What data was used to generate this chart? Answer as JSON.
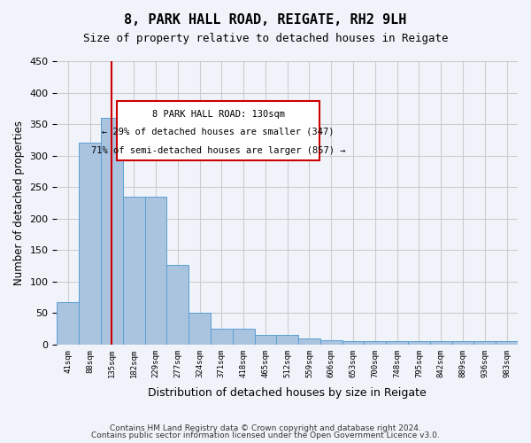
{
  "title1": "8, PARK HALL ROAD, REIGATE, RH2 9LH",
  "title2": "Size of property relative to detached houses in Reigate",
  "xlabel": "Distribution of detached houses by size in Reigate",
  "ylabel": "Number of detached properties",
  "footer1": "Contains HM Land Registry data © Crown copyright and database right 2024.",
  "footer2": "Contains public sector information licensed under the Open Government Licence v3.0.",
  "annotation_line1": "8 PARK HALL ROAD: 130sqm",
  "annotation_line2": "← 29% of detached houses are smaller (347)",
  "annotation_line3": "71% of semi-detached houses are larger (857) →",
  "bar_values": [
    67,
    320,
    360,
    235,
    235,
    127,
    50,
    25,
    25,
    15,
    15,
    10,
    7,
    5,
    5,
    5,
    5,
    5,
    5,
    5,
    5
  ],
  "bin_labels": [
    "41sqm",
    "88sqm",
    "135sqm",
    "182sqm",
    "229sqm",
    "277sqm",
    "324sqm",
    "371sqm",
    "418sqm",
    "465sqm",
    "512sqm",
    "559sqm",
    "606sqm",
    "653sqm",
    "700sqm",
    "748sqm",
    "795sqm",
    "842sqm",
    "889sqm",
    "936sqm",
    "983sqm"
  ],
  "bar_color": "#aac4e0",
  "bar_edge_color": "#5a9fd4",
  "vline_color": "#cc0000",
  "vline_x": 2,
  "annotation_box_color": "#cc0000",
  "grid_color": "#cccccc",
  "ylim": [
    0,
    450
  ],
  "yticks": [
    0,
    50,
    100,
    150,
    200,
    250,
    300,
    350,
    400,
    450
  ],
  "background_color": "#f0f4fa"
}
